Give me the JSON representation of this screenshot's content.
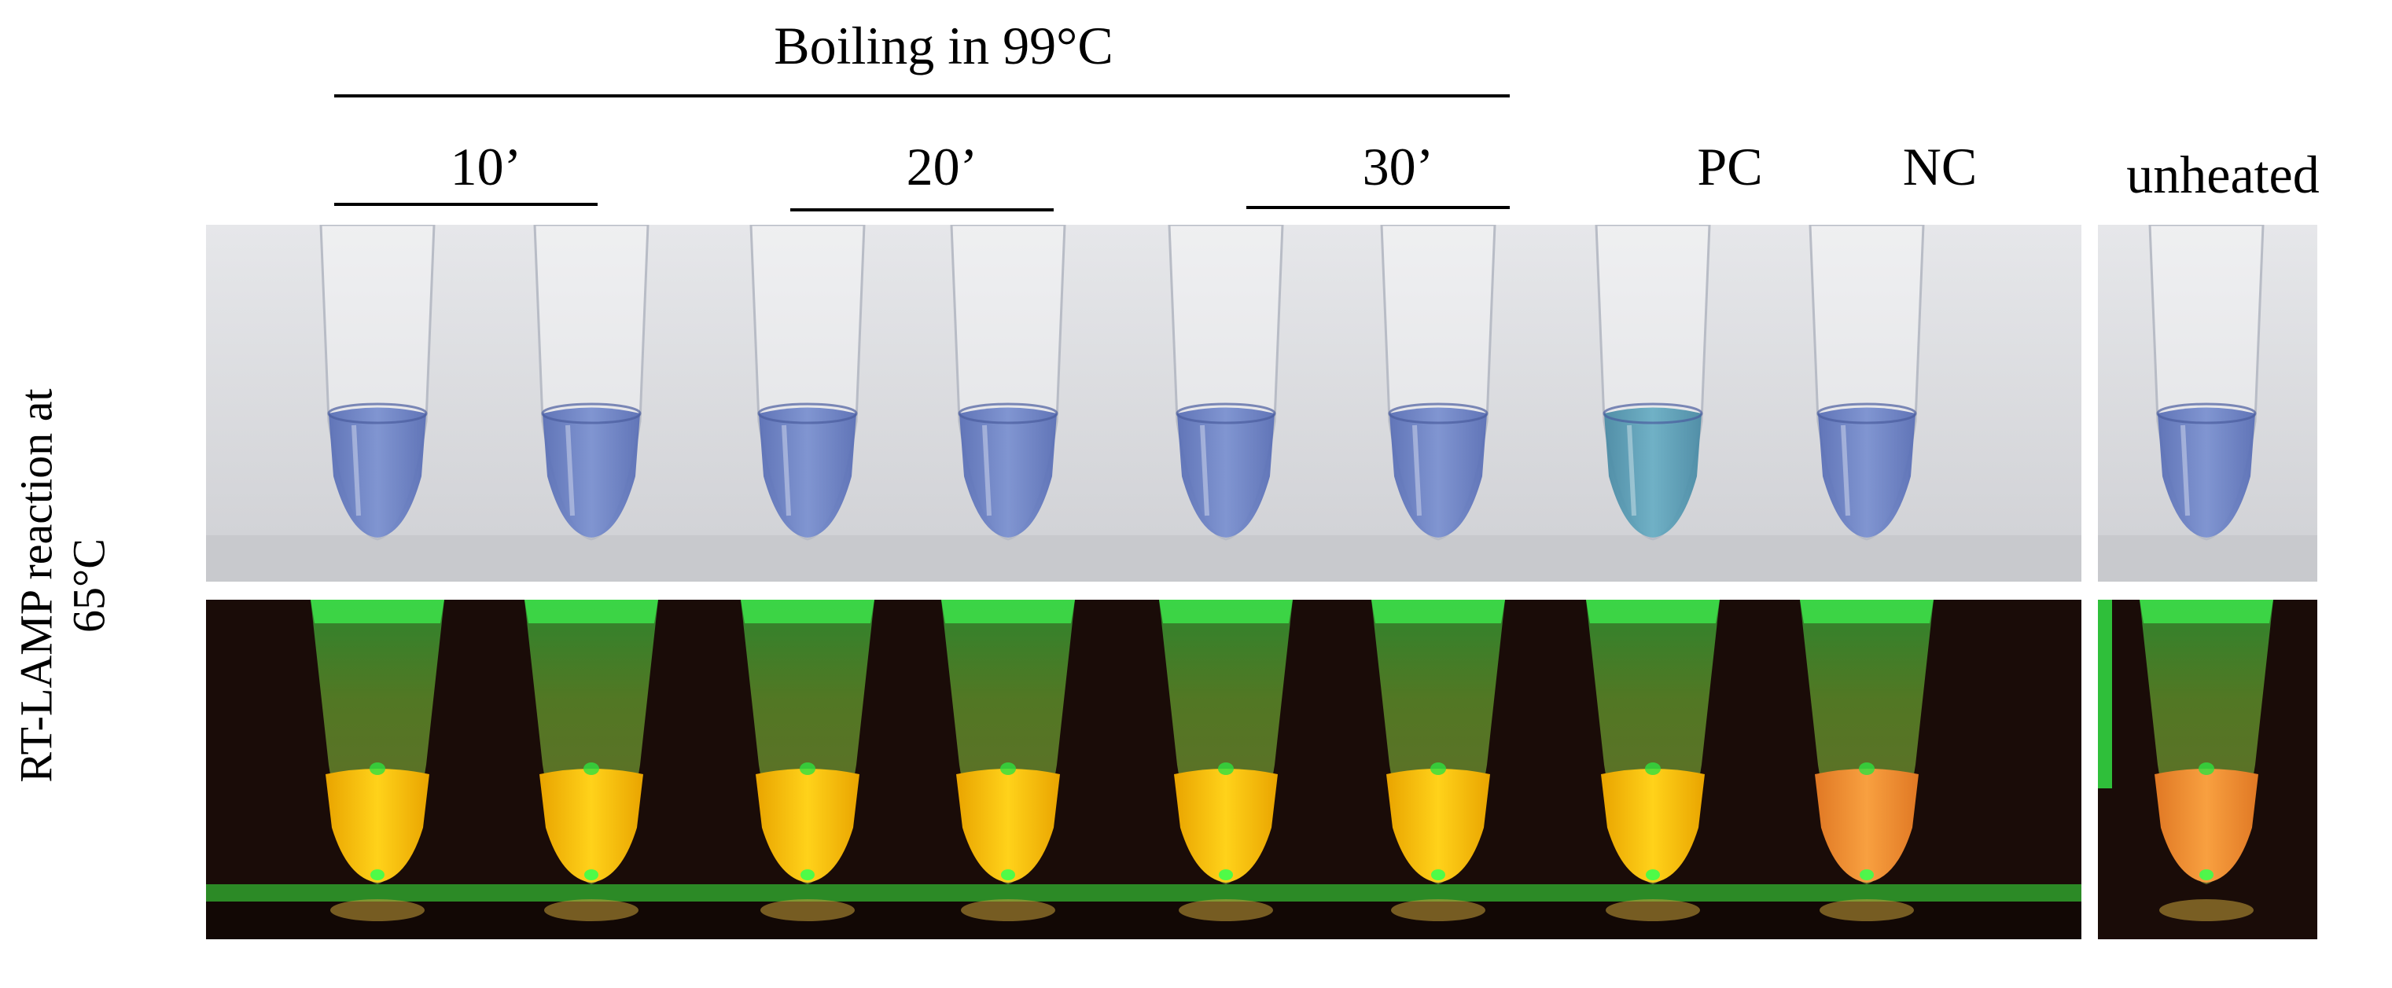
{
  "figure": {
    "group_header": "Boiling in 99°C",
    "time_labels": [
      "10’",
      "20’",
      "30’"
    ],
    "control_labels": [
      "PC",
      "NC"
    ],
    "unheated_label": "unheated",
    "row_label_line1": "RT-LAMP reaction at",
    "row_label_line2": "65°C"
  },
  "colors": {
    "visible_background": "#dcdde0",
    "blue_liquid": "#6f86c8",
    "pc_liquid": "#5b9cb4",
    "uv_background": "#1a0c08",
    "uv_tube_glow": "#27e03a",
    "positive_fluorescence": "#f5b800",
    "negative_fluorescence": "#f08a28"
  },
  "panels": {
    "visible_light": {
      "tubes": [
        "heated-10-a",
        "heated-10-b",
        "heated-20-a",
        "heated-20-b",
        "heated-30-a",
        "heated-30-b",
        "PC",
        "NC"
      ],
      "unheated_tubes": [
        "unheated"
      ]
    },
    "uv_light": {
      "tubes": [
        "heated-10-a",
        "heated-10-b",
        "heated-20-a",
        "heated-20-b",
        "heated-30-a",
        "heated-30-b",
        "PC",
        "NC"
      ],
      "unheated_tubes": [
        "unheated"
      ]
    }
  }
}
